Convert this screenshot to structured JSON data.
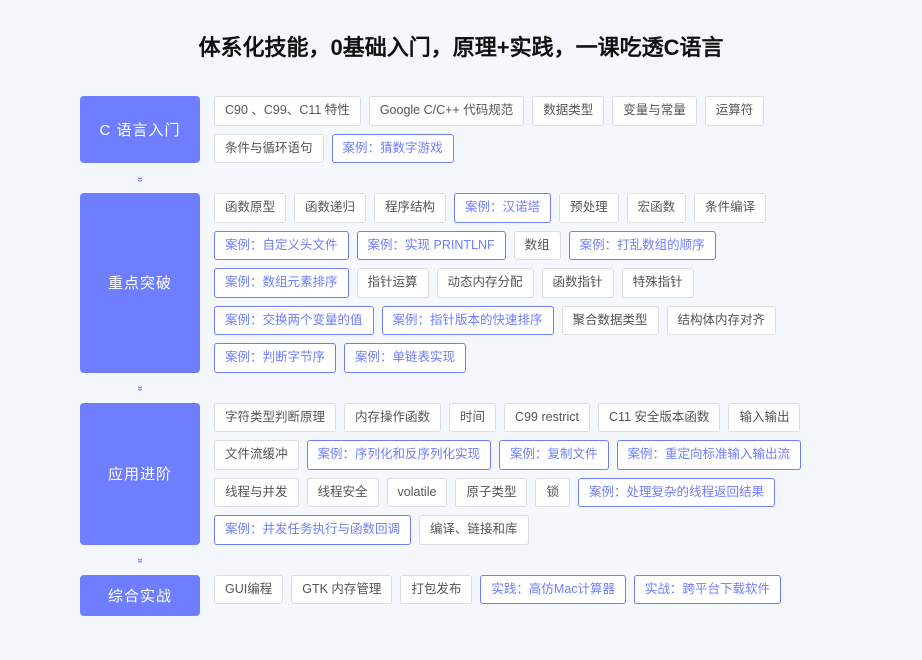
{
  "title": "体系化技能，0基础入门，原理+实践，一课吃透C语言",
  "category_bg": "#6e7eff",
  "chevron_color": "#6e7eff",
  "tag_border_normal": "#dddddd",
  "tag_text_normal": "#555555",
  "tag_border_highlight": "#6e7eff",
  "tag_text_highlight": "#6e7eff",
  "background_color": "#f4f7fb",
  "sections": [
    {
      "label": "C 语言入门",
      "items": [
        {
          "text": "C90 、C99、C11 特性",
          "hl": false
        },
        {
          "text": "Google C/C++ 代码规范",
          "hl": false
        },
        {
          "text": "数据类型",
          "hl": false
        },
        {
          "text": "变量与常量",
          "hl": false
        },
        {
          "text": "运算符",
          "hl": false
        },
        {
          "text": "条件与循环语句",
          "hl": false
        },
        {
          "text": "案例：猜数字游戏",
          "hl": true
        }
      ]
    },
    {
      "label": "重点突破",
      "items": [
        {
          "text": "函数原型",
          "hl": false
        },
        {
          "text": "函数递归",
          "hl": false
        },
        {
          "text": "程序结构",
          "hl": false
        },
        {
          "text": "案例：汉诺塔",
          "hl": true
        },
        {
          "text": "预处理",
          "hl": false
        },
        {
          "text": "宏函数",
          "hl": false
        },
        {
          "text": "条件编译",
          "hl": false
        },
        {
          "text": "案例：自定义头文件",
          "hl": true
        },
        {
          "text": "案例：实现 PRINTLNF",
          "hl": true
        },
        {
          "text": "数组",
          "hl": false
        },
        {
          "text": "案例：打乱数组的顺序",
          "hl": true
        },
        {
          "text": "案例：数组元素排序",
          "hl": true
        },
        {
          "text": "指针运算",
          "hl": false
        },
        {
          "text": "动态内存分配",
          "hl": false
        },
        {
          "text": "函数指针",
          "hl": false
        },
        {
          "text": "特殊指针",
          "hl": false
        },
        {
          "text": "案例：交换两个变量的值",
          "hl": true
        },
        {
          "text": "案例：指针版本的快速排序",
          "hl": true
        },
        {
          "text": "聚合数据类型",
          "hl": false
        },
        {
          "text": "结构体内存对齐",
          "hl": false
        },
        {
          "text": "案例：判断字节序",
          "hl": true
        },
        {
          "text": "案例：单链表实现",
          "hl": true
        }
      ]
    },
    {
      "label": "应用进阶",
      "items": [
        {
          "text": "字符类型判断原理",
          "hl": false
        },
        {
          "text": "内存操作函数",
          "hl": false
        },
        {
          "text": "时间",
          "hl": false
        },
        {
          "text": "C99 restrict",
          "hl": false
        },
        {
          "text": "C11 安全版本函数",
          "hl": false
        },
        {
          "text": "输入输出",
          "hl": false
        },
        {
          "text": "文件流缓冲",
          "hl": false
        },
        {
          "text": "案例：序列化和反序列化实现",
          "hl": true
        },
        {
          "text": "案例：复制文件",
          "hl": true
        },
        {
          "text": "案例：重定向标准输入输出流",
          "hl": true
        },
        {
          "text": "线程与并发",
          "hl": false
        },
        {
          "text": "线程安全",
          "hl": false
        },
        {
          "text": "volatile",
          "hl": false
        },
        {
          "text": "原子类型",
          "hl": false
        },
        {
          "text": "锁",
          "hl": false
        },
        {
          "text": "案例：处理复杂的线程返回结果",
          "hl": true
        },
        {
          "text": "案例：并发任务执行与函数回调",
          "hl": true
        },
        {
          "text": "编译、链接和库",
          "hl": false
        }
      ]
    },
    {
      "label": "综合实战",
      "items": [
        {
          "text": "GUI编程",
          "hl": false
        },
        {
          "text": "GTK 内存管理",
          "hl": false
        },
        {
          "text": "打包发布",
          "hl": false
        },
        {
          "text": "实践：高仿Mac计算器",
          "hl": true
        },
        {
          "text": "实战：跨平台下载软件",
          "hl": true
        }
      ]
    }
  ]
}
